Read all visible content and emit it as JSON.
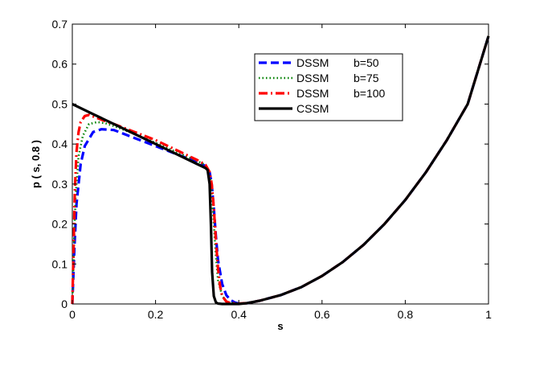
{
  "chart_data": {
    "type": "line",
    "title": "",
    "xlabel": "s",
    "ylabel": "p ( s, 0.8 )",
    "xlim": [
      0,
      1
    ],
    "ylim": [
      0,
      0.7
    ],
    "xticks": [
      0,
      0.2,
      0.4,
      0.6,
      0.8,
      1
    ],
    "xtick_labels": [
      "0",
      "0.2",
      "0.4",
      "0.6",
      "0.8",
      "1"
    ],
    "yticks": [
      0,
      0.1,
      0.2,
      0.3,
      0.4,
      0.5,
      0.6,
      0.7
    ],
    "ytick_labels": [
      "0",
      "0.1",
      "0.2",
      "0.3",
      "0.4",
      "0.5",
      "0.6",
      "0.7"
    ],
    "grid": false,
    "legend_position": "top-right",
    "series": [
      {
        "name": "DSSM",
        "param": "b=50",
        "color": "#0000ff",
        "style": "dashed",
        "x": [
          0,
          0.005,
          0.01,
          0.02,
          0.03,
          0.05,
          0.07,
          0.1,
          0.15,
          0.2,
          0.25,
          0.3,
          0.32,
          0.33,
          0.335,
          0.34,
          0.345,
          0.35,
          0.36,
          0.37,
          0.38,
          0.39,
          0.4,
          0.42,
          0.45,
          0.5,
          0.55,
          0.6,
          0.65,
          0.7,
          0.75,
          0.8,
          0.85,
          0.9,
          0.95,
          1.0
        ],
        "y": [
          0,
          0.14,
          0.25,
          0.35,
          0.395,
          0.43,
          0.437,
          0.435,
          0.415,
          0.395,
          0.375,
          0.355,
          0.345,
          0.33,
          0.3,
          0.24,
          0.17,
          0.11,
          0.05,
          0.022,
          0.01,
          0.004,
          0.001,
          0.002,
          0.008,
          0.022,
          0.042,
          0.07,
          0.105,
          0.148,
          0.2,
          0.26,
          0.33,
          0.41,
          0.5,
          0.67
        ]
      },
      {
        "name": "DSSM",
        "param": "b=75",
        "color": "#008000",
        "style": "dotted",
        "x": [
          0,
          0.004,
          0.008,
          0.015,
          0.025,
          0.04,
          0.06,
          0.08,
          0.1,
          0.15,
          0.2,
          0.25,
          0.3,
          0.32,
          0.33,
          0.335,
          0.34,
          0.345,
          0.35,
          0.36,
          0.37,
          0.38,
          0.4,
          0.42,
          0.45,
          0.5,
          0.55,
          0.6,
          0.65,
          0.7,
          0.75,
          0.8,
          0.85,
          0.9,
          0.95,
          1.0
        ],
        "y": [
          0,
          0.15,
          0.27,
          0.37,
          0.42,
          0.45,
          0.455,
          0.452,
          0.445,
          0.425,
          0.403,
          0.38,
          0.358,
          0.347,
          0.325,
          0.28,
          0.2,
          0.12,
          0.06,
          0.02,
          0.007,
          0.003,
          0.001,
          0.002,
          0.008,
          0.022,
          0.042,
          0.07,
          0.105,
          0.148,
          0.2,
          0.26,
          0.33,
          0.41,
          0.5,
          0.67
        ]
      },
      {
        "name": "DSSM",
        "param": "b=100",
        "color": "#ff0000",
        "style": "dashdot",
        "x": [
          0,
          0.003,
          0.006,
          0.01,
          0.015,
          0.02,
          0.03,
          0.04,
          0.06,
          0.08,
          0.1,
          0.15,
          0.2,
          0.25,
          0.3,
          0.32,
          0.33,
          0.335,
          0.34,
          0.345,
          0.35,
          0.355,
          0.36,
          0.37,
          0.38,
          0.4,
          0.42,
          0.45,
          0.5,
          0.55,
          0.6,
          0.65,
          0.7,
          0.75,
          0.8,
          0.85,
          0.9,
          0.95,
          1.0
        ],
        "y": [
          0,
          0.14,
          0.28,
          0.38,
          0.43,
          0.455,
          0.47,
          0.473,
          0.465,
          0.457,
          0.45,
          0.43,
          0.41,
          0.385,
          0.36,
          0.348,
          0.33,
          0.3,
          0.24,
          0.16,
          0.09,
          0.045,
          0.02,
          0.006,
          0.002,
          0.001,
          0.002,
          0.008,
          0.022,
          0.042,
          0.07,
          0.105,
          0.148,
          0.2,
          0.26,
          0.33,
          0.41,
          0.5,
          0.67
        ]
      },
      {
        "name": "CSSM",
        "param": "",
        "color": "#000000",
        "style": "solid",
        "x": [
          0,
          0.05,
          0.1,
          0.15,
          0.2,
          0.25,
          0.3,
          0.32,
          0.325,
          0.33,
          0.333,
          0.336,
          0.34,
          0.345,
          0.35,
          0.36,
          0.38,
          0.4,
          0.42,
          0.45,
          0.5,
          0.55,
          0.6,
          0.65,
          0.7,
          0.75,
          0.8,
          0.85,
          0.9,
          0.95,
          1.0
        ],
        "y": [
          0.5,
          0.475,
          0.45,
          0.425,
          0.4,
          0.375,
          0.35,
          0.34,
          0.335,
          0.3,
          0.2,
          0.08,
          0.02,
          0.004,
          0.001,
          0.0,
          0.0,
          0.0,
          0.002,
          0.008,
          0.022,
          0.042,
          0.07,
          0.105,
          0.148,
          0.2,
          0.26,
          0.33,
          0.41,
          0.5,
          0.67
        ]
      }
    ]
  }
}
